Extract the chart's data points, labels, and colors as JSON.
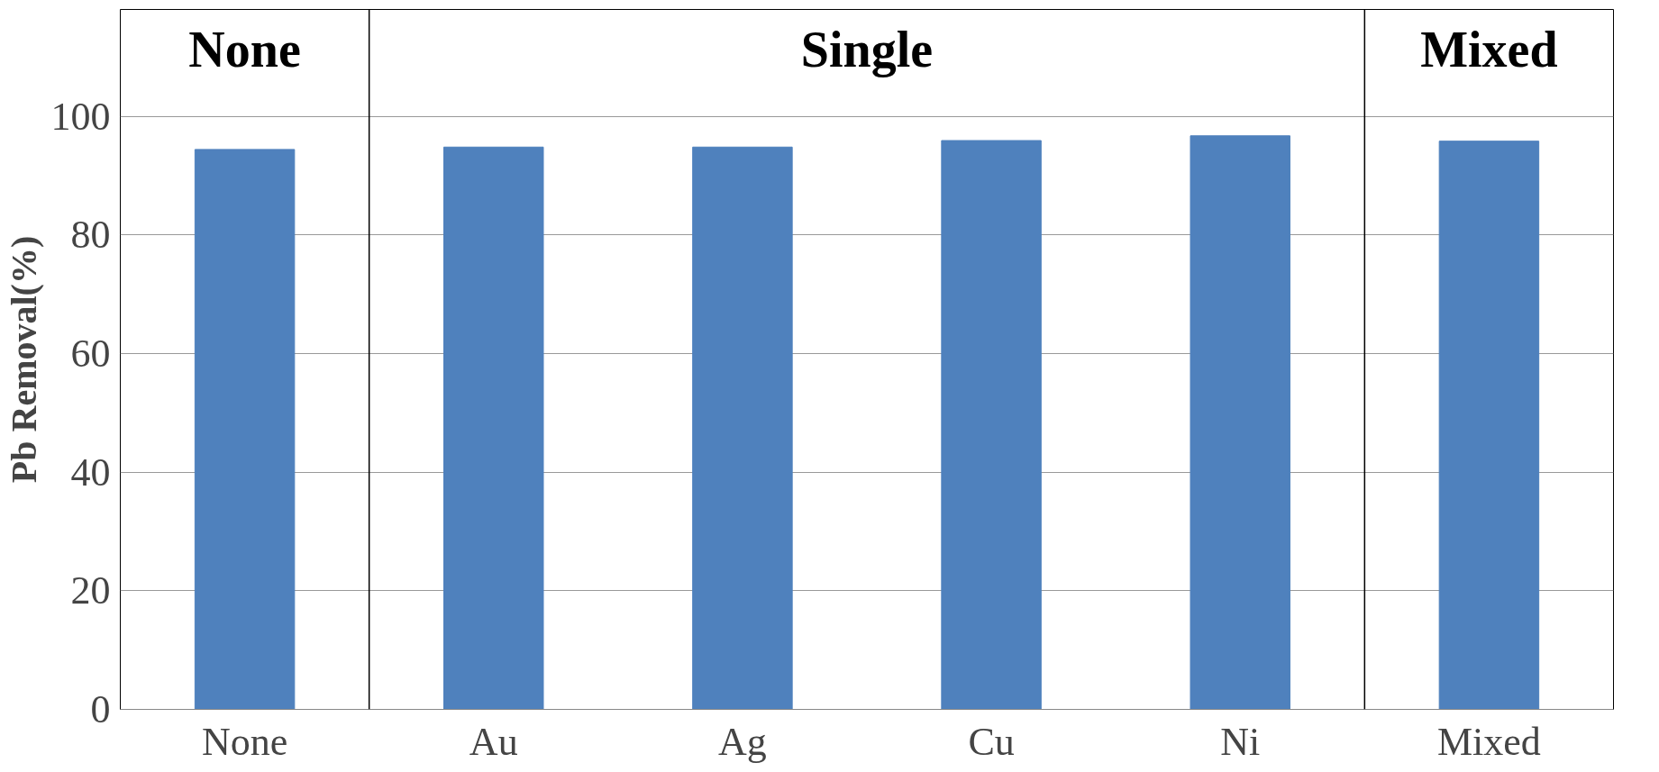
{
  "chart_data": {
    "type": "bar",
    "ylabel": "Pb Removal(%)",
    "categories": [
      "None",
      "Au",
      "Ag",
      "Cu",
      "Ni",
      "Mixed"
    ],
    "values": [
      94.4,
      94.8,
      94.8,
      95.9,
      96.7,
      95.8
    ],
    "color": "#4f81bd",
    "ylim": [
      0,
      118
    ],
    "yticks": [
      0,
      20,
      40,
      60,
      80,
      100
    ],
    "grid": "y",
    "annotations": [
      "None",
      "Single",
      "Mixed"
    ]
  }
}
